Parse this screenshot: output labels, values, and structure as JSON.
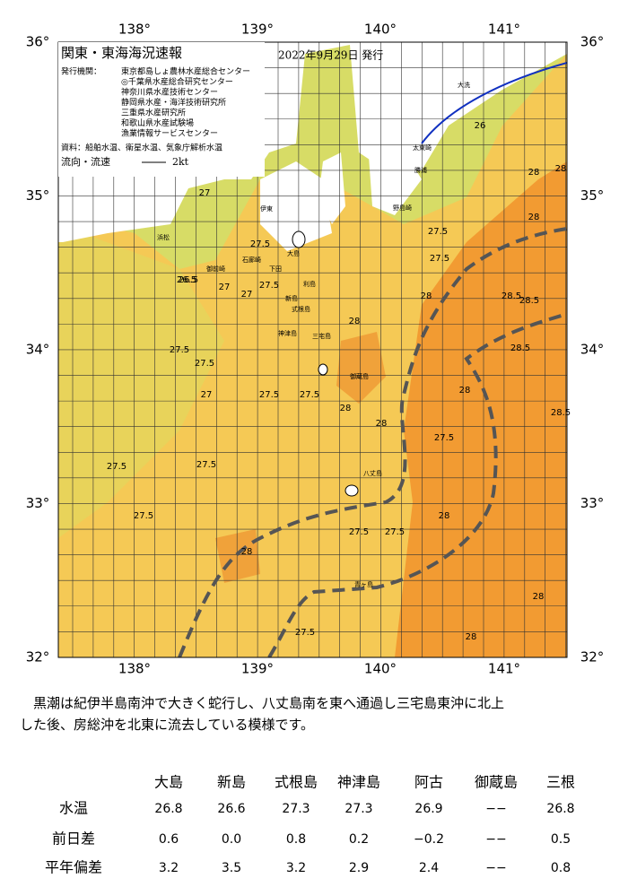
{
  "map": {
    "title": "関東・東海海況速報",
    "issued": "2022年9月29日 発行",
    "agencies_label": "発行機関：",
    "agencies": [
      "東京都島しょ農林水産総合センター",
      "◎千葉県水産総合研究センター",
      "神奈川県水産技術センター",
      "静岡県水産・海洋技術研究所",
      "三重県水産研究所",
      "和歌山県水産試験場",
      "漁業情報サービスセンター"
    ],
    "sources": "資料：船舶水温、衛星水温、気象庁解析水温",
    "flow_label": "流向・流速",
    "flow_scale": "2kt",
    "lon_labels": [
      "138°",
      "139°",
      "140°",
      "141°"
    ],
    "lat_labels": [
      "36°",
      "35°",
      "34°",
      "33°",
      "32°"
    ],
    "places": [
      "大島",
      "利島",
      "新島",
      "式根島",
      "神津島",
      "三宅島",
      "御蔵島",
      "八丈島",
      "青ヶ島",
      "勝浦",
      "野島崎",
      "伊東",
      "下田",
      "石廊崎",
      "御前崎",
      "浜松",
      "大洗",
      "太東崎"
    ],
    "contour_labels": [
      "27",
      "27.5",
      "26.5",
      "27",
      "27.5",
      "28",
      "28",
      "28.5",
      "28.5",
      "28.5",
      "28",
      "28",
      "27.5",
      "27.5",
      "27.5",
      "27.5",
      "27",
      "27.5",
      "27.5",
      "28",
      "27.5",
      "28",
      "27.5",
      "27.5",
      "27.5",
      "28",
      "27.5",
      "27.5",
      "28",
      "28",
      "28",
      "28",
      "26.5",
      "27",
      "26",
      "27.5",
      "28.5",
      "28"
    ]
  },
  "caption": [
    "黒潮は紀伊半島南沖で大きく蛇行し、八丈島南を東へ通過し三宅島東沖に北上",
    "した後、房総沖を北東に流去している模様です。"
  ],
  "table": {
    "columns": [
      "大島",
      "新島",
      "式根島",
      "神津島",
      "阿古",
      "御蔵島",
      "三根"
    ],
    "rows": [
      {
        "label": "水温",
        "cells": [
          "26.8",
          "26.6",
          "27.3",
          "27.3",
          "26.9",
          "−−",
          "26.8"
        ]
      },
      {
        "label": "前日差",
        "cells": [
          "0.6",
          "0.0",
          "0.8",
          "0.2",
          "−0.2",
          "−−",
          "0.5"
        ]
      },
      {
        "label": "平年偏差",
        "cells": [
          "3.2",
          "3.5",
          "3.2",
          "2.9",
          "2.4",
          "−−",
          "0.8"
        ]
      }
    ]
  }
}
